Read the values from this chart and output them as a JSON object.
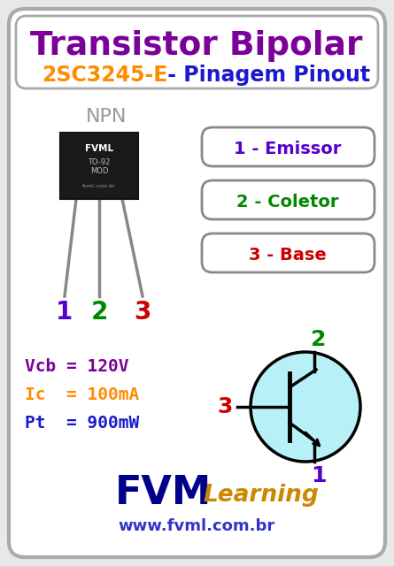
{
  "bg_color": "#e8e8e8",
  "inner_bg": "#ffffff",
  "outer_border_color": "#aaaaaa",
  "title1": "Transistor Bipolar",
  "title1_color": "#7b0099",
  "subtitle_part1": "2SC3245-E",
  "subtitle_part1_color": "#ff8c00",
  "subtitle_part2": " - Pinagem Pinout",
  "subtitle_part2_color": "#1a1acc",
  "npn_label": "NPN",
  "npn_color": "#999999",
  "pin_labels": [
    "1",
    "2",
    "3"
  ],
  "pin_colors": [
    "#5500cc",
    "#008800",
    "#cc0000"
  ],
  "box1_text": "1 - Emissor",
  "box1_color": "#5500cc",
  "box2_text": "2 - Coletor",
  "box2_color": "#008800",
  "box3_text": "3 - Base",
  "box3_color": "#cc0000",
  "vcb_text": "Vcb = 120V",
  "vcb_color": "#7b0099",
  "ic_text": "Ic  = 100mA",
  "ic_color": "#ff8c00",
  "pt_text": "Pt  = 900mW",
  "pt_color": "#1a1acc",
  "fvm_color": "#00008b",
  "learning_color": "#cc8800",
  "website_color": "#3333cc",
  "circle_fill": "#b8f0f8",
  "label2_color": "#008800",
  "label3_color": "#cc0000",
  "label1_color": "#5500cc",
  "box_border_color": "#888888"
}
